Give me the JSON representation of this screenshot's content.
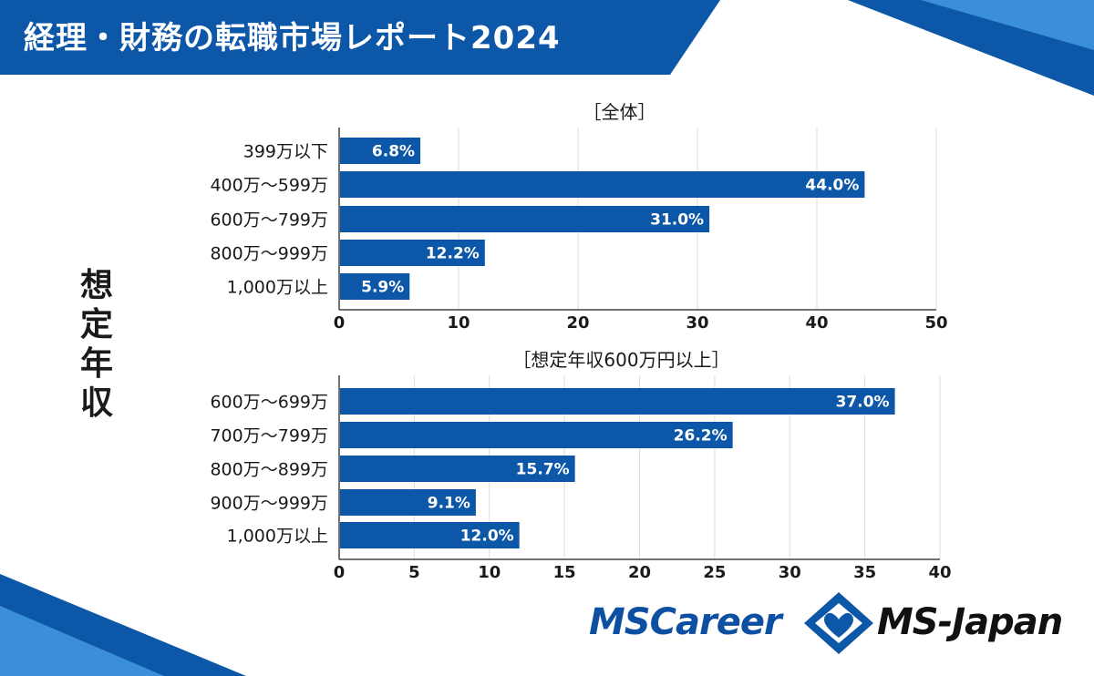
{
  "title": "経理・財務の転職市場レポート2024",
  "side_label": [
    "想",
    "定",
    "年",
    "収"
  ],
  "colors": {
    "bar": "#0c57a8",
    "title_bg": "#0c57a8",
    "accent_light": "#3a8fd8"
  },
  "logos": {
    "mscareer": "MSCareer",
    "msjapan": "MS-Japan"
  },
  "chart_data": [
    {
      "type": "bar",
      "orientation": "horizontal",
      "title": "［全体］",
      "categories": [
        "399万以下",
        "400万～599万",
        "600万～799万",
        "800万～999万",
        "1,000万以上"
      ],
      "values": [
        6.8,
        44.0,
        31.0,
        12.2,
        5.9
      ],
      "value_labels": [
        "6.8%",
        "44.0%",
        "31.0%",
        "12.2%",
        "5.9%"
      ],
      "xlim": [
        0,
        50
      ],
      "xticks": [
        0,
        10,
        20,
        30,
        40,
        50
      ],
      "xlabel": "",
      "ylabel": "想定年収",
      "grid": true
    },
    {
      "type": "bar",
      "orientation": "horizontal",
      "title": "［想定年収600万円以上］",
      "categories": [
        "600万～699万",
        "700万～799万",
        "800万～899万",
        "900万～999万",
        "1,000万以上"
      ],
      "values": [
        37.0,
        26.2,
        15.7,
        9.1,
        12.0
      ],
      "value_labels": [
        "37.0%",
        "26.2%",
        "15.7%",
        "9.1%",
        "12.0%"
      ],
      "xlim": [
        0,
        40
      ],
      "xticks": [
        0,
        5,
        10,
        15,
        20,
        25,
        30,
        35,
        40
      ],
      "xlabel": "",
      "ylabel": "想定年収",
      "grid": true
    }
  ]
}
